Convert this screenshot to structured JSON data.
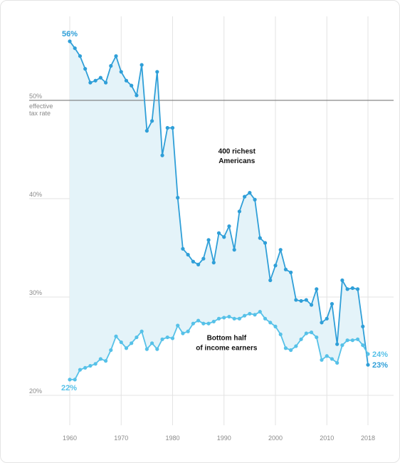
{
  "chart_data": {
    "type": "line",
    "y_unit_note": [
      "effective",
      "tax rate"
    ],
    "ylim": [
      20,
      56
    ],
    "xlim": [
      1960,
      2018
    ],
    "yticks": [
      20,
      30,
      40,
      50
    ],
    "ytick_labels": [
      "20%",
      "30%",
      "40%",
      "50%"
    ],
    "xticks": [
      1960,
      1970,
      1980,
      1990,
      2000,
      2010,
      2018
    ],
    "xtick_labels": [
      "1960",
      "1970",
      "1980",
      "1990",
      "2000",
      "2010",
      "2018"
    ],
    "reference_line": 50,
    "grid": "vertical lines at x ticks, horizontal lines at y ticks",
    "x": [
      1960,
      1961,
      1962,
      1963,
      1964,
      1965,
      1966,
      1967,
      1968,
      1969,
      1970,
      1971,
      1972,
      1973,
      1974,
      1975,
      1976,
      1977,
      1978,
      1979,
      1980,
      1981,
      1982,
      1983,
      1984,
      1985,
      1986,
      1987,
      1988,
      1989,
      1990,
      1991,
      1992,
      1993,
      1994,
      1995,
      1996,
      1997,
      1998,
      1999,
      2000,
      2001,
      2002,
      2003,
      2004,
      2005,
      2006,
      2007,
      2008,
      2009,
      2010,
      2011,
      2012,
      2013,
      2014,
      2015,
      2016,
      2017,
      2018
    ],
    "series": [
      {
        "name": "400 richest Americans",
        "name_lines": [
          "400 richest",
          "Americans"
        ],
        "color": "#2f9fd8",
        "end_label": "23%",
        "start_label": "56%",
        "values": [
          56,
          55.3,
          54.5,
          53.2,
          51.8,
          52,
          52.3,
          51.8,
          53.5,
          54.5,
          52.9,
          52,
          51.5,
          50.5,
          53.6,
          46.9,
          47.9,
          52.9,
          44.4,
          47.2,
          47.2,
          40.1,
          34.9,
          34.3,
          33.6,
          33.3,
          33.9,
          35.8,
          33.5,
          36.5,
          36.1,
          37.2,
          34.8,
          38.7,
          40.2,
          40.6,
          39.9,
          36,
          35.5,
          31.7,
          33.2,
          34.8,
          32.8,
          32.5,
          29.7,
          29.6,
          29.7,
          29.2,
          30.8,
          27.4,
          27.8,
          29.3,
          25.2,
          31.7,
          30.8,
          30.9,
          30.8,
          27,
          23.1
        ]
      },
      {
        "name": "Bottom half of income earners",
        "name_lines": [
          "Bottom half",
          "of income earners"
        ],
        "color": "#56c1e8",
        "end_label": "24%",
        "start_label": "22%",
        "values": [
          21.6,
          21.6,
          22.6,
          22.8,
          23,
          23.2,
          23.7,
          23.5,
          24.6,
          26,
          25.4,
          24.8,
          25.3,
          25.9,
          26.5,
          24.7,
          25.3,
          24.7,
          25.7,
          25.9,
          25.8,
          27.1,
          26.3,
          26.5,
          27.3,
          27.6,
          27.3,
          27.3,
          27.5,
          27.8,
          27.9,
          28,
          27.8,
          27.8,
          28.1,
          28.3,
          28.2,
          28.5,
          27.8,
          27.4,
          27,
          26.2,
          24.8,
          24.6,
          25,
          25.7,
          26.3,
          26.4,
          25.9,
          23.6,
          24,
          23.7,
          23.3,
          25.1,
          25.6,
          25.6,
          25.7,
          25.1,
          24.2
        ]
      }
    ],
    "fill_between_series": true,
    "fill_color": "#e4f3f9"
  }
}
